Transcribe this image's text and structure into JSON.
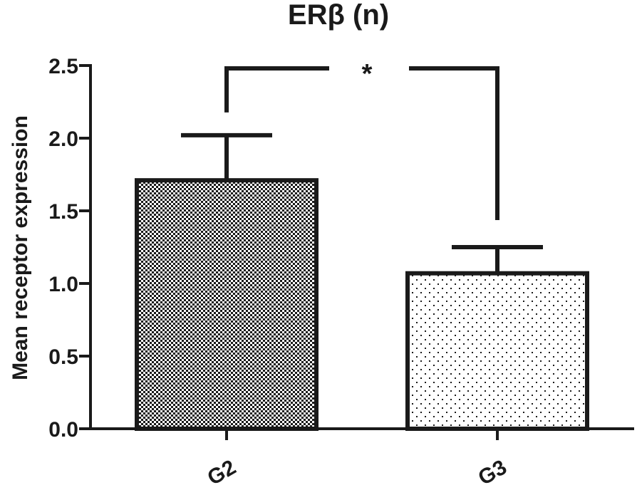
{
  "chart_data": {
    "type": "bar",
    "title": "ERβ (n)",
    "xlabel": "",
    "ylabel": "Mean receptor expression",
    "ylim": [
      0,
      2.5
    ],
    "yticks": [
      "0.0",
      "0.5",
      "1.0",
      "1.5",
      "2.0",
      "2.5"
    ],
    "categories": [
      "G2",
      "G3"
    ],
    "values": [
      1.71,
      1.07
    ],
    "error_upper": [
      0.31,
      0.18
    ],
    "bar_patterns": [
      "dense-checker",
      "sparse-dots"
    ],
    "significance": {
      "between": [
        "G2",
        "G3"
      ],
      "label": "*"
    },
    "grid": false,
    "legend": "none"
  },
  "colors": {
    "ink": "#1a1a1a",
    "background": "#ffffff"
  }
}
